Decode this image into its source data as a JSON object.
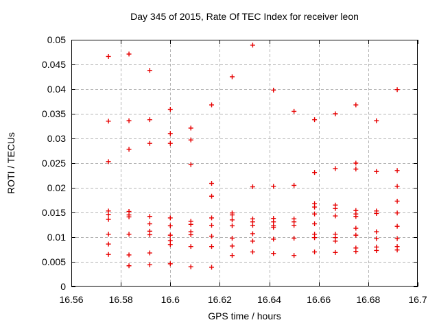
{
  "chart_data": {
    "type": "scatter",
    "title": "Day 345 of 2015, Rate Of TEC Index for receiver leon",
    "xlabel": "GPS time / hours",
    "ylabel": "ROTI / TECUs",
    "xlim": [
      16.56,
      16.7
    ],
    "ylim": [
      0,
      0.05
    ],
    "xticks": [
      16.56,
      16.58,
      16.6,
      16.62,
      16.64,
      16.66,
      16.68,
      16.7
    ],
    "xtick_labels": [
      "16.56",
      "16.58",
      "16.6",
      "16.62",
      "16.64",
      "16.66",
      "16.68",
      "16.7"
    ],
    "yticks": [
      0,
      0.005,
      0.01,
      0.015,
      0.02,
      0.025,
      0.03,
      0.035,
      0.04,
      0.045,
      0.05
    ],
    "ytick_labels": [
      "0",
      "0.005",
      "0.01",
      "0.015",
      "0.02",
      "0.025",
      "0.03",
      "0.035",
      "0.04",
      "0.045",
      "0.05"
    ],
    "grid": true,
    "legend": "none",
    "marker": "plus",
    "marker_color": "#e60000",
    "grid_color": "#b3b3b3",
    "axis_color": "#000000",
    "series": [
      {
        "name": "ROTI",
        "points": [
          [
            16.575,
            0.0466
          ],
          [
            16.575,
            0.0335
          ],
          [
            16.575,
            0.0253
          ],
          [
            16.575,
            0.0153
          ],
          [
            16.575,
            0.0146
          ],
          [
            16.575,
            0.0136
          ],
          [
            16.575,
            0.0106
          ],
          [
            16.575,
            0.0086
          ],
          [
            16.575,
            0.0065
          ],
          [
            16.5833,
            0.0471
          ],
          [
            16.5833,
            0.0336
          ],
          [
            16.5833,
            0.0278
          ],
          [
            16.5833,
            0.0152
          ],
          [
            16.5833,
            0.0145
          ],
          [
            16.5833,
            0.0141
          ],
          [
            16.5833,
            0.0106
          ],
          [
            16.5833,
            0.0064
          ],
          [
            16.5833,
            0.0042
          ],
          [
            16.5917,
            0.0438
          ],
          [
            16.5917,
            0.0338
          ],
          [
            16.5917,
            0.029
          ],
          [
            16.5917,
            0.0142
          ],
          [
            16.5917,
            0.0127
          ],
          [
            16.5917,
            0.0112
          ],
          [
            16.5917,
            0.0105
          ],
          [
            16.5917,
            0.0068
          ],
          [
            16.5917,
            0.0044
          ],
          [
            16.6,
            0.0359
          ],
          [
            16.6,
            0.031
          ],
          [
            16.6,
            0.029
          ],
          [
            16.6,
            0.0139
          ],
          [
            16.6,
            0.0123
          ],
          [
            16.6,
            0.0104
          ],
          [
            16.6,
            0.0093
          ],
          [
            16.6,
            0.0085
          ],
          [
            16.6,
            0.0046
          ],
          [
            16.6083,
            0.0321
          ],
          [
            16.6083,
            0.0297
          ],
          [
            16.6083,
            0.0247
          ],
          [
            16.6083,
            0.0132
          ],
          [
            16.6083,
            0.0126
          ],
          [
            16.6083,
            0.0111
          ],
          [
            16.6083,
            0.0105
          ],
          [
            16.6083,
            0.0081
          ],
          [
            16.6083,
            0.004
          ],
          [
            16.6167,
            0.0368
          ],
          [
            16.6167,
            0.0209
          ],
          [
            16.6167,
            0.0183
          ],
          [
            16.6167,
            0.0139
          ],
          [
            16.6167,
            0.0124
          ],
          [
            16.6167,
            0.0102
          ],
          [
            16.6167,
            0.0081
          ],
          [
            16.6167,
            0.0039
          ],
          [
            16.625,
            0.0425
          ],
          [
            16.625,
            0.0149
          ],
          [
            16.625,
            0.0145
          ],
          [
            16.625,
            0.0135
          ],
          [
            16.625,
            0.0123
          ],
          [
            16.625,
            0.0098
          ],
          [
            16.625,
            0.0082
          ],
          [
            16.625,
            0.0063
          ],
          [
            16.6333,
            0.0489
          ],
          [
            16.6333,
            0.0202
          ],
          [
            16.6333,
            0.0137
          ],
          [
            16.6333,
            0.0131
          ],
          [
            16.6333,
            0.0124
          ],
          [
            16.6333,
            0.0107
          ],
          [
            16.6333,
            0.0092
          ],
          [
            16.6333,
            0.007
          ],
          [
            16.6417,
            0.0398
          ],
          [
            16.6417,
            0.0203
          ],
          [
            16.6417,
            0.0138
          ],
          [
            16.6417,
            0.0131
          ],
          [
            16.6417,
            0.0123
          ],
          [
            16.6417,
            0.012
          ],
          [
            16.6417,
            0.0096
          ],
          [
            16.6417,
            0.0067
          ],
          [
            16.65,
            0.0355
          ],
          [
            16.65,
            0.0205
          ],
          [
            16.65,
            0.0137
          ],
          [
            16.65,
            0.0131
          ],
          [
            16.65,
            0.0124
          ],
          [
            16.65,
            0.0098
          ],
          [
            16.65,
            0.0063
          ],
          [
            16.6583,
            0.0338
          ],
          [
            16.6583,
            0.0231
          ],
          [
            16.6583,
            0.0168
          ],
          [
            16.6583,
            0.0161
          ],
          [
            16.6583,
            0.0147
          ],
          [
            16.6583,
            0.0127
          ],
          [
            16.6583,
            0.0106
          ],
          [
            16.6583,
            0.0099
          ],
          [
            16.6583,
            0.007
          ],
          [
            16.6667,
            0.035
          ],
          [
            16.6667,
            0.0239
          ],
          [
            16.6667,
            0.0165
          ],
          [
            16.6667,
            0.0158
          ],
          [
            16.6667,
            0.0143
          ],
          [
            16.6667,
            0.0106
          ],
          [
            16.6667,
            0.0099
          ],
          [
            16.6667,
            0.0092
          ],
          [
            16.6667,
            0.0069
          ],
          [
            16.675,
            0.0368
          ],
          [
            16.675,
            0.025
          ],
          [
            16.675,
            0.0238
          ],
          [
            16.675,
            0.0154
          ],
          [
            16.675,
            0.0147
          ],
          [
            16.675,
            0.0142
          ],
          [
            16.675,
            0.0118
          ],
          [
            16.675,
            0.0104
          ],
          [
            16.675,
            0.0078
          ],
          [
            16.675,
            0.0071
          ],
          [
            16.6833,
            0.0336
          ],
          [
            16.6833,
            0.0233
          ],
          [
            16.6833,
            0.0153
          ],
          [
            16.6833,
            0.0148
          ],
          [
            16.6833,
            0.0111
          ],
          [
            16.6833,
            0.0097
          ],
          [
            16.6833,
            0.008
          ],
          [
            16.6833,
            0.0073
          ],
          [
            16.6917,
            0.0399
          ],
          [
            16.6917,
            0.0235
          ],
          [
            16.6917,
            0.0203
          ],
          [
            16.6917,
            0.0173
          ],
          [
            16.6917,
            0.0149
          ],
          [
            16.6917,
            0.0122
          ],
          [
            16.6917,
            0.0097
          ],
          [
            16.6917,
            0.0081
          ],
          [
            16.6917,
            0.0074
          ]
        ]
      }
    ]
  }
}
